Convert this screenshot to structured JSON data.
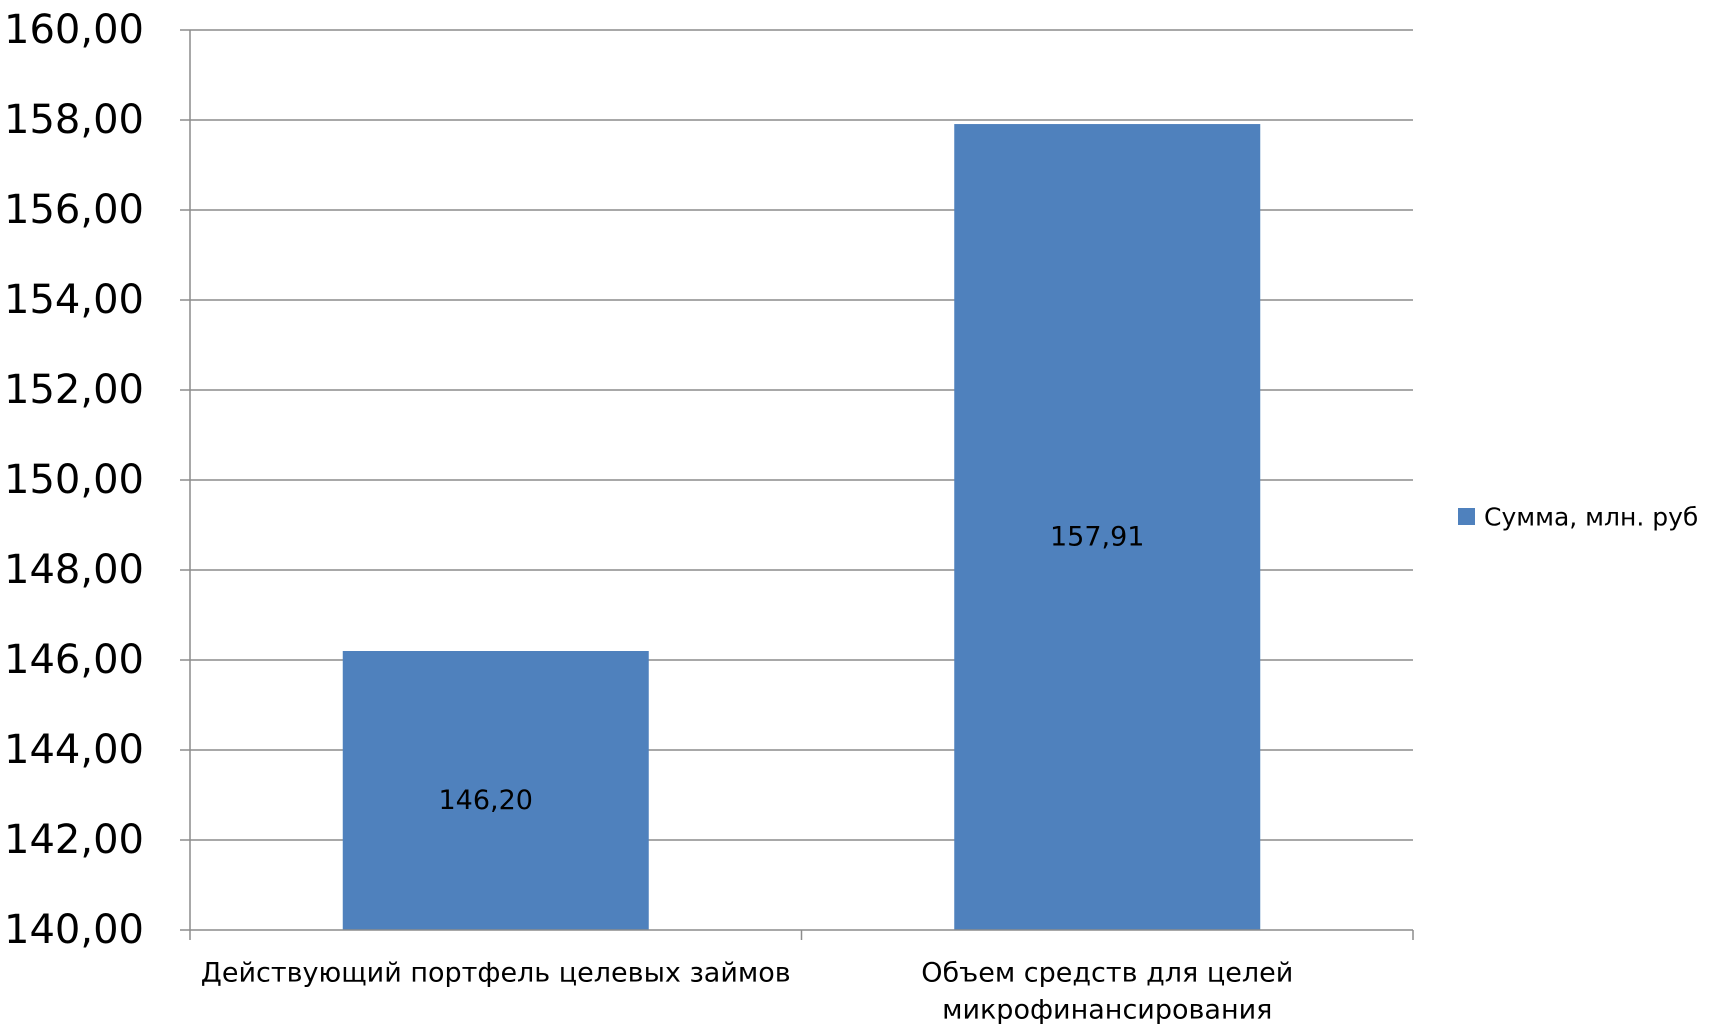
{
  "chart_data": {
    "type": "bar",
    "categories": [
      [
        "Действующий портфель целевых займов"
      ],
      [
        "Объем средств для целей",
        "микрофинансирования"
      ]
    ],
    "series": [
      {
        "name": "Сумма, млн. руб",
        "values": [
          146.2,
          157.91
        ],
        "color": "#4F81BD"
      }
    ],
    "data_labels": [
      "146,20",
      "157,91"
    ],
    "ylim": [
      140,
      160
    ],
    "ytick_values": [
      140,
      142,
      144,
      146,
      148,
      150,
      152,
      154,
      156,
      158,
      160
    ],
    "ytick_labels": [
      "140,00",
      "142,00",
      "144,00",
      "146,00",
      "148,00",
      "150,00",
      "152,00",
      "154,00",
      "156,00",
      "158,00",
      "160,00"
    ],
    "grid": true,
    "legend_position": "right",
    "colors": {
      "bar": "#4F81BD",
      "grid": "#8C8C8C",
      "axis": "#8C8C8C",
      "text": "#000000"
    }
  }
}
